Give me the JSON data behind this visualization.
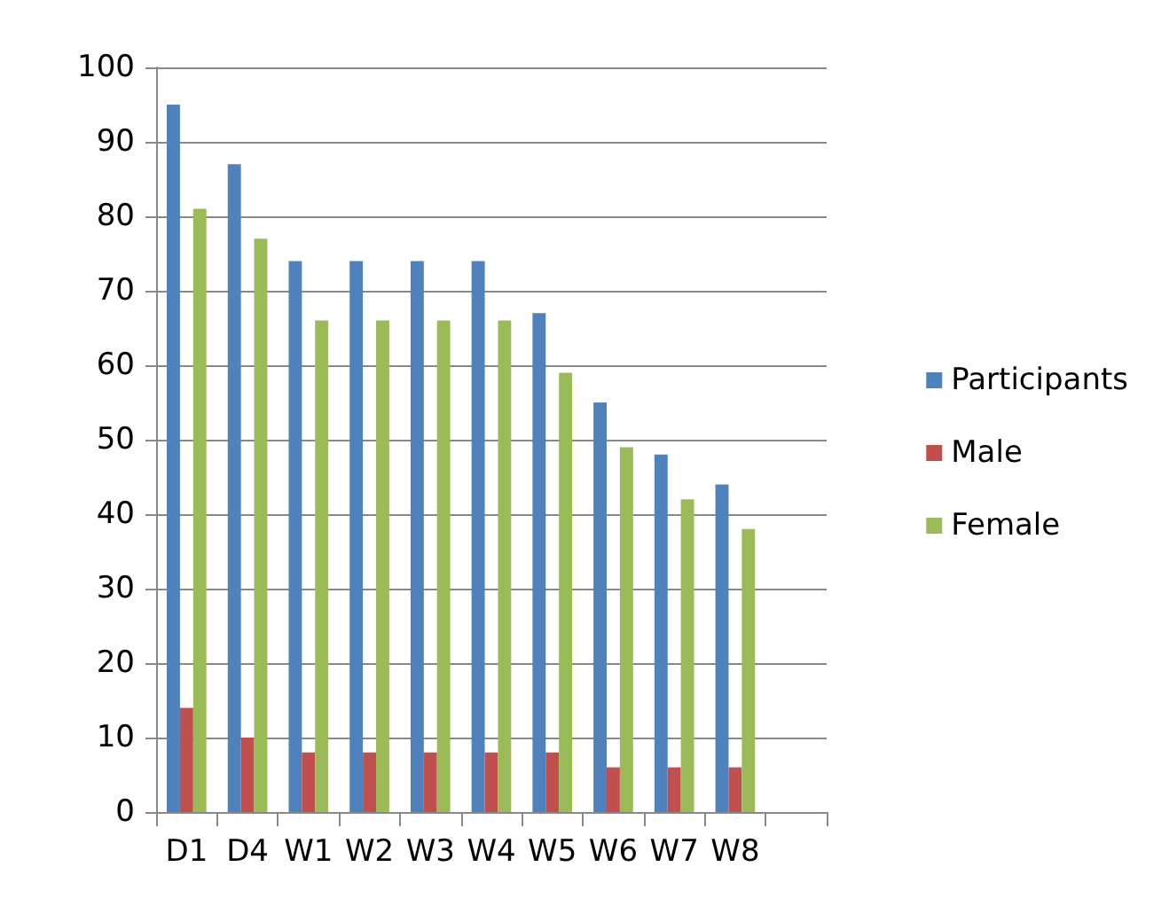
{
  "chart_data": {
    "type": "bar",
    "categories": [
      "D1",
      "D4",
      "W1",
      "W2",
      "W3",
      "W4",
      "W5",
      "W6",
      "W7",
      "W8",
      null
    ],
    "series": [
      {
        "name": "Participants",
        "color": "#4f81bd",
        "values": [
          95,
          87,
          74,
          74,
          74,
          74,
          67,
          55,
          48,
          44,
          null
        ]
      },
      {
        "name": "Male",
        "color": "#c0504d",
        "values": [
          14,
          10,
          8,
          8,
          8,
          8,
          8,
          6,
          6,
          6,
          null
        ]
      },
      {
        "name": "Female",
        "color": "#9bbb59",
        "values": [
          81,
          77,
          66,
          66,
          66,
          66,
          59,
          49,
          42,
          38,
          null
        ]
      }
    ],
    "ylim": [
      0,
      100
    ],
    "yticks": [
      0,
      10,
      20,
      30,
      40,
      50,
      60,
      70,
      80,
      90,
      100
    ],
    "grid": "y",
    "legend": "right"
  }
}
